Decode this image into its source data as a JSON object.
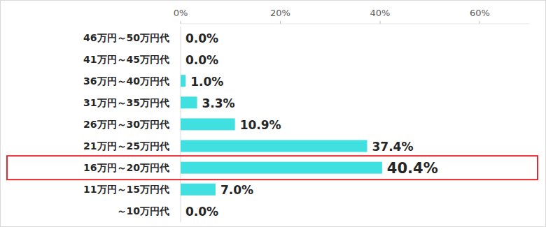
{
  "chart_data": {
    "type": "bar",
    "orientation": "horizontal",
    "categories": [
      "46万円～50万円代",
      "41万円～45万円代",
      "36万円～40万円代",
      "31万円～35万円代",
      "26万円～30万円代",
      "21万円～25万円代",
      "16万円～20万円代",
      "11万円～15万円代",
      "～10万円代"
    ],
    "values": [
      0.0,
      0.0,
      1.0,
      3.3,
      10.9,
      37.4,
      40.4,
      7.0,
      0.0
    ],
    "value_labels": [
      "0.0%",
      "0.0%",
      "1.0%",
      "3.3%",
      "10.9%",
      "37.4%",
      "40.4%",
      "7.0%",
      "0.0%"
    ],
    "data_labels": true,
    "color": "#40e0e0",
    "xlim": [
      0,
      70
    ],
    "xticks": [
      {
        "value": 0,
        "label": "0%"
      },
      {
        "value": 20,
        "label": "20%"
      },
      {
        "value": 40,
        "label": "40%"
      },
      {
        "value": 60,
        "label": "60%"
      }
    ],
    "grid": false
  }
}
